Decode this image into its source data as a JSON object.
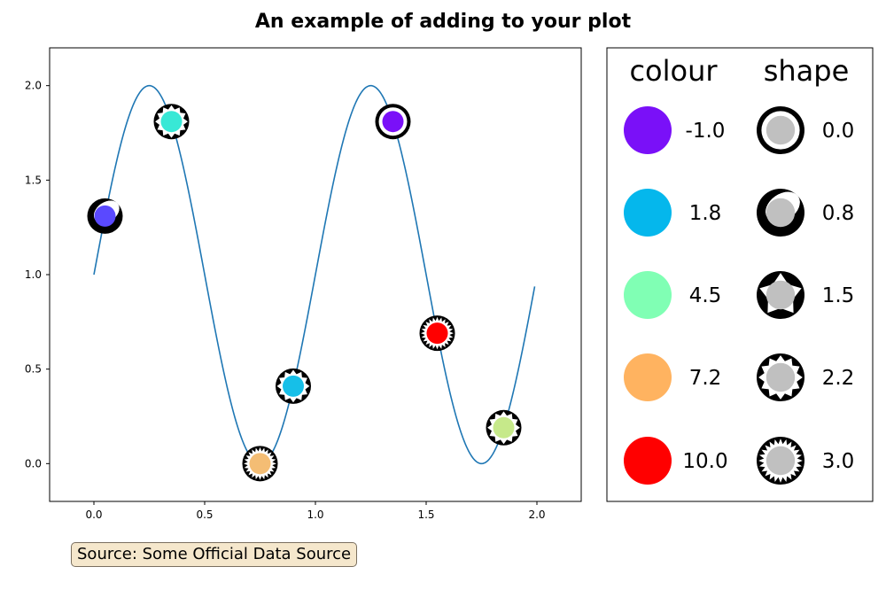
{
  "chart_data": {
    "type": "line",
    "title": "An example of adding to your plot",
    "xlabel": "",
    "ylabel": "",
    "xlim": [
      -0.2,
      2.2
    ],
    "ylim": [
      -0.2,
      2.2
    ],
    "xticks": [
      "0.0",
      "0.5",
      "1.0",
      "1.5",
      "2.0"
    ],
    "yticks": [
      "0.0",
      "0.5",
      "1.0",
      "1.5",
      "2.0"
    ],
    "grid": false,
    "line": {
      "function": "1 + sin(2*pi*x)",
      "x_range": [
        0,
        1.99
      ],
      "color": "#1f77b4"
    },
    "markers": [
      {
        "x": 0.05,
        "y": 1.31,
        "colour": -0.5,
        "shape": 0.3,
        "fill": "#5a49ff"
      },
      {
        "x": 0.35,
        "y": 1.81,
        "colour": 3.6,
        "shape": 2.2,
        "fill": "#38e8d6"
      },
      {
        "x": 0.75,
        "y": 0.0,
        "colour": 7.2,
        "shape": 3.0,
        "fill": "#f4bd74"
      },
      {
        "x": 0.9,
        "y": 0.41,
        "colour": 1.8,
        "shape": 2.2,
        "fill": "#16bfe8"
      },
      {
        "x": 1.35,
        "y": 1.81,
        "colour": -1.0,
        "shape": 0.0,
        "fill": "#7a10f8"
      },
      {
        "x": 1.55,
        "y": 0.69,
        "colour": 10.0,
        "shape": 3.0,
        "fill": "#ff0000"
      },
      {
        "x": 1.85,
        "y": 0.19,
        "colour": 5.8,
        "shape": 2.2,
        "fill": "#c6e98a"
      }
    ],
    "legend": {
      "colour_title": "colour",
      "shape_title": "shape",
      "colour_entries": [
        {
          "label": "-1.0",
          "color": "#7a10f8"
        },
        {
          "label": "1.8",
          "color": "#05b7ec"
        },
        {
          "label": "4.5",
          "color": "#80ffb4"
        },
        {
          "label": "7.2",
          "color": "#ffb360"
        },
        {
          "label": "10.0",
          "color": "#ff0000"
        }
      ],
      "shape_entries": [
        {
          "label": "0.0",
          "shape": 0.0
        },
        {
          "label": "0.8",
          "shape": 0.8
        },
        {
          "label": "1.5",
          "shape": 1.5
        },
        {
          "label": "2.2",
          "shape": 2.2
        },
        {
          "label": "3.0",
          "shape": 3.0
        }
      ],
      "placement": "right",
      "shape_fill": "#c0c0c0"
    },
    "annotation": "Source: Some Official Data Source"
  }
}
